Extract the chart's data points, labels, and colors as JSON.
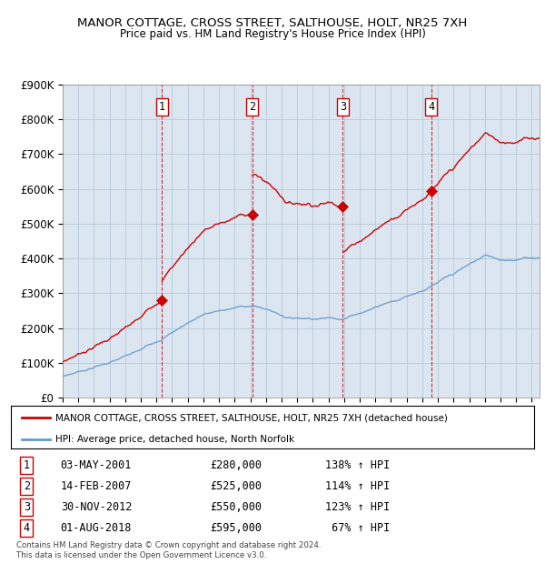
{
  "title": "MANOR COTTAGE, CROSS STREET, SALTHOUSE, HOLT, NR25 7XH",
  "subtitle": "Price paid vs. HM Land Registry's House Price Index (HPI)",
  "red_label": "MANOR COTTAGE, CROSS STREET, SALTHOUSE, HOLT, NR25 7XH (detached house)",
  "blue_label": "HPI: Average price, detached house, North Norfolk",
  "ylim": [
    0,
    900000
  ],
  "yticks": [
    0,
    100000,
    200000,
    300000,
    400000,
    500000,
    600000,
    700000,
    800000,
    900000
  ],
  "ytick_labels": [
    "£0",
    "£100K",
    "£200K",
    "£300K",
    "£400K",
    "£500K",
    "£600K",
    "£700K",
    "£800K",
    "£900K"
  ],
  "xlim_start": 1995.0,
  "xlim_end": 2025.5,
  "sales": [
    {
      "num": 1,
      "date": "03-MAY-2001",
      "year": 2001.35,
      "price": 280000,
      "pct": "138%"
    },
    {
      "num": 2,
      "date": "14-FEB-2007",
      "year": 2007.12,
      "price": 525000,
      "pct": "114%"
    },
    {
      "num": 3,
      "date": "30-NOV-2012",
      "year": 2012.92,
      "price": 550000,
      "pct": "123%"
    },
    {
      "num": 4,
      "date": "01-AUG-2018",
      "year": 2018.58,
      "price": 595000,
      "pct": "67%"
    }
  ],
  "footer": "Contains HM Land Registry data © Crown copyright and database right 2024.\nThis data is licensed under the Open Government Licence v3.0.",
  "plot_bg": "#dce6f1",
  "red_color": "#cc0000",
  "blue_color": "#6699cc",
  "grid_color": "#b8c8d8",
  "table_dates": [
    "03-MAY-2001",
    "14-FEB-2007",
    "30-NOV-2012",
    "01-AUG-2018"
  ],
  "table_prices": [
    "£280,000",
    "£525,000",
    "£550,000",
    "£595,000"
  ],
  "table_pcts": [
    "138% ↑ HPI",
    "114% ↑ HPI",
    "123% ↑ HPI",
    " 67% ↑ HPI"
  ]
}
